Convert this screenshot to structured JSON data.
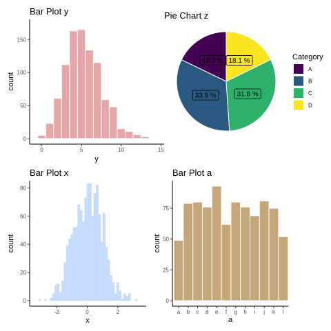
{
  "chart_data": [
    {
      "type": "bar",
      "title": "Bar Plot y",
      "xlabel": "y",
      "ylabel": "count",
      "x": [
        0,
        1,
        2,
        3,
        4,
        5,
        6,
        7,
        8,
        9,
        10,
        11,
        12,
        13,
        14
      ],
      "values": [
        5,
        23,
        61,
        112,
        163,
        165,
        134,
        115,
        59,
        48,
        15,
        11,
        6,
        3,
        1
      ],
      "xlim": [
        -1,
        15
      ],
      "ylim": [
        0,
        170
      ],
      "xticks": [
        0,
        5,
        10,
        15
      ],
      "yticks": [
        0,
        50,
        100,
        150
      ],
      "colors": {
        "fill": "#e6a6a8",
        "stroke": "#ffffff"
      }
    },
    {
      "type": "pie",
      "title": "Pie Chart z",
      "legend_title": "Category",
      "legend_position": "right",
      "categories": [
        "A",
        "B",
        "C",
        "D"
      ],
      "values": [
        18.2,
        33.9,
        31.8,
        18.1
      ],
      "labels": [
        "18.2 %",
        "33.9 %",
        "31.8 %",
        "18.1 %"
      ],
      "colors": [
        "#440154",
        "#2a5a82",
        "#2db26a",
        "#f6e51f"
      ]
    },
    {
      "type": "bar",
      "title": "Bar Plot x",
      "xlabel": "x",
      "ylabel": "count",
      "x": [
        -3.1,
        -2.75,
        -2.35,
        -2.2,
        -2.05,
        -1.9,
        -1.75,
        -1.6,
        -1.45,
        -1.3,
        -1.15,
        -1.0,
        -0.85,
        -0.7,
        -0.55,
        -0.4,
        -0.25,
        -0.1,
        0.05,
        0.2,
        0.35,
        0.5,
        0.65,
        0.8,
        0.95,
        1.1,
        1.25,
        1.4,
        1.55,
        1.7,
        1.85,
        2.0,
        2.15,
        2.3,
        2.45,
        2.6,
        2.75,
        2.9,
        3.05,
        3.2
      ],
      "values": [
        1,
        1,
        2,
        5,
        11,
        12,
        6,
        14,
        27,
        39,
        44,
        47,
        52,
        52,
        68,
        64,
        56,
        73,
        83,
        83,
        60,
        76,
        82,
        61,
        42,
        62,
        38,
        29,
        18,
        13,
        5,
        13,
        7,
        1,
        5,
        3,
        5,
        0,
        0,
        1
      ],
      "bin_width": 0.15,
      "xlim": [
        -3.5,
        3.7
      ],
      "ylim": [
        0,
        84
      ],
      "xticks": [
        -2,
        0,
        2
      ],
      "yticks": [
        0,
        20,
        40,
        60,
        80
      ],
      "colors": {
        "fill": "#c6dcfc",
        "stroke": "#c6dcfc"
      }
    },
    {
      "type": "bar",
      "title": "Bar Plot a",
      "xlabel": "a",
      "ylabel": "count",
      "categories": [
        "a",
        "b",
        "c",
        "d",
        "e",
        "f",
        "g",
        "h",
        "i",
        "j",
        "k",
        "l"
      ],
      "values": [
        49,
        79,
        80,
        76,
        93,
        62,
        80,
        76,
        69,
        81,
        75,
        52
      ],
      "ylim": [
        0,
        95
      ],
      "yticks": [
        0,
        25,
        50,
        75
      ],
      "colors": {
        "fill": "#c4a677",
        "stroke": "#ffffff"
      }
    }
  ]
}
